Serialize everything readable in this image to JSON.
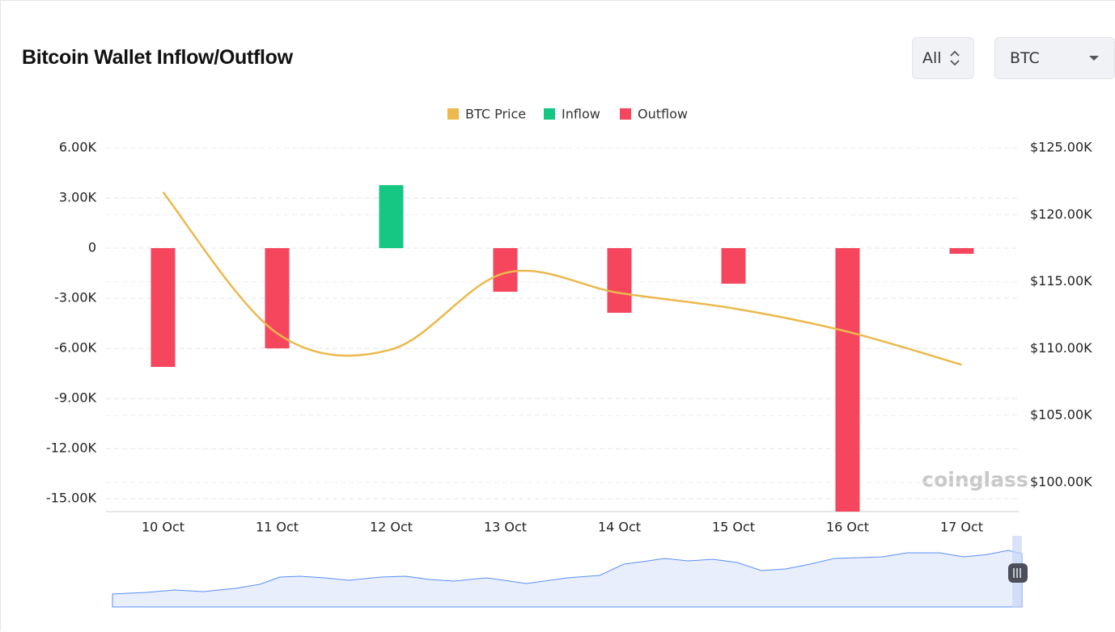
{
  "header": {
    "title": "Bitcoin Wallet Inflow/Outflow",
    "range_select": "All",
    "asset_select": "BTC"
  },
  "chart_data": {
    "type": "bar",
    "watermark": "coinglass",
    "categories": [
      "10 Oct",
      "11 Oct",
      "12 Oct",
      "13 Oct",
      "14 Oct",
      "15 Oct",
      "16 Oct",
      "17 Oct"
    ],
    "series": [
      {
        "name": "BTC Price",
        "type": "line",
        "axis": "y2",
        "color": "#ebb94c",
        "values": [
          121690,
          111150,
          109940,
          115660,
          114160,
          113010,
          111270,
          108800
        ]
      },
      {
        "name": "Inflow",
        "type": "bar",
        "color": "#16c784",
        "values": [
          null,
          null,
          3770,
          null,
          null,
          null,
          null,
          null
        ]
      },
      {
        "name": "Outflow",
        "type": "bar",
        "color": "#f6465d",
        "values": [
          -7110,
          -6000,
          null,
          -2610,
          -3870,
          -2130,
          -15770,
          -340
        ]
      }
    ],
    "ylim": [
      -15770,
      6000
    ],
    "yticks": [
      {
        "value": 6000,
        "label": "6.00K"
      },
      {
        "value": 3000,
        "label": "3.00K"
      },
      0,
      {
        "value": -3000,
        "label": "-3.00K"
      },
      {
        "value": -6000,
        "label": "-6.00K"
      },
      {
        "value": -9000,
        "label": "-9.00K"
      },
      {
        "value": -12000,
        "label": "-12.00K"
      },
      {
        "value": -15000,
        "label": "-15.00K"
      }
    ],
    "y2lim": [
      97830,
      125000
    ],
    "y2ticks": [
      {
        "value": 125000,
        "label": "$125.00K"
      },
      {
        "value": 120000,
        "label": "$120.00K"
      },
      {
        "value": 115000,
        "label": "$115.00K"
      },
      {
        "value": 110000,
        "label": "$110.00K"
      },
      {
        "value": 105000,
        "label": "$105.00K"
      },
      {
        "value": 100000,
        "label": "$100.00K"
      }
    ],
    "grid": true,
    "legend": "top"
  }
}
